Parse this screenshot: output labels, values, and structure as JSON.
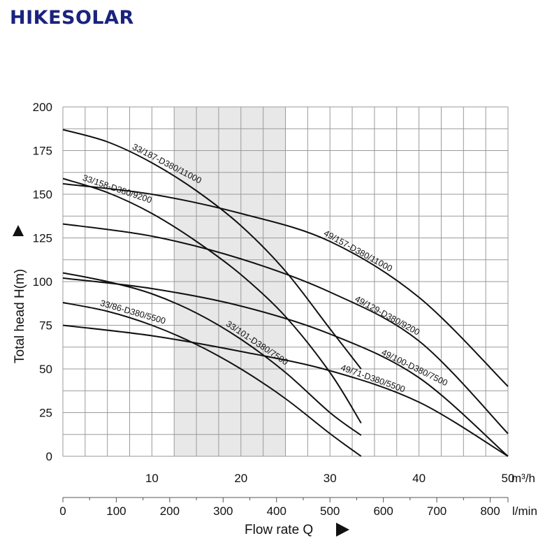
{
  "brand": {
    "name": "HIKESOLAR",
    "color": "#1a237e"
  },
  "chart_data": {
    "type": "line",
    "title": "",
    "xlabel": "Flow rate Q",
    "ylabel": "Total head H(m)",
    "x_unit": "m³/h",
    "x2_unit": "l/min",
    "xlim": [
      0,
      50
    ],
    "ylim": [
      0,
      200
    ],
    "x_ticks": [
      "10",
      "20",
      "30",
      "40",
      "50"
    ],
    "x2_ticks": [
      "0",
      "100",
      "200",
      "300",
      "400",
      "500",
      "600",
      "700",
      "800"
    ],
    "y_ticks": [
      "0",
      "25",
      "50",
      "75",
      "100",
      "125",
      "150",
      "175",
      "200"
    ],
    "grid": true,
    "highlight_band": {
      "x_from": 12.5,
      "x_to": 25,
      "color": "#e8e8e8"
    },
    "series": [
      {
        "name": "33/187-D380/11000",
        "x": [
          0,
          5,
          10,
          15,
          20,
          25,
          30,
          33.5
        ],
        "y": [
          187,
          180,
          168,
          152,
          132,
          106,
          73,
          50
        ]
      },
      {
        "name": "33/158-D380/9200",
        "x": [
          0,
          5,
          10,
          15,
          20,
          25,
          30,
          33.5
        ],
        "y": [
          159,
          151,
          139,
          123,
          104,
          80,
          48,
          19
        ]
      },
      {
        "name": "33/101-D380/7500",
        "x": [
          0,
          5,
          10,
          15,
          20,
          25,
          30,
          33.5
        ],
        "y": [
          105,
          100,
          93,
          82,
          67,
          48,
          25,
          12
        ]
      },
      {
        "name": "33/86-D380/5500",
        "x": [
          0,
          5,
          10,
          15,
          20,
          25,
          30,
          33.5
        ],
        "y": [
          88,
          83,
          75,
          64,
          50,
          33,
          13,
          0
        ]
      },
      {
        "name": "49/157-D380/11000",
        "x": [
          0,
          10,
          20,
          30,
          40,
          50
        ],
        "y": [
          156,
          150,
          139,
          123,
          91,
          40
        ]
      },
      {
        "name": "49/129-D380/9200",
        "x": [
          0,
          10,
          20,
          30,
          40,
          50
        ],
        "y": [
          133,
          126,
          113,
          94,
          66,
          13
        ]
      },
      {
        "name": "49/100-D380/7500",
        "x": [
          0,
          10,
          20,
          30,
          40,
          50
        ],
        "y": [
          102,
          96,
          86,
          70,
          45,
          0
        ]
      },
      {
        "name": "49/71-D380/5500",
        "x": [
          0,
          10,
          20,
          30,
          40,
          50
        ],
        "y": [
          75,
          69,
          60,
          49,
          31,
          0
        ]
      }
    ]
  }
}
